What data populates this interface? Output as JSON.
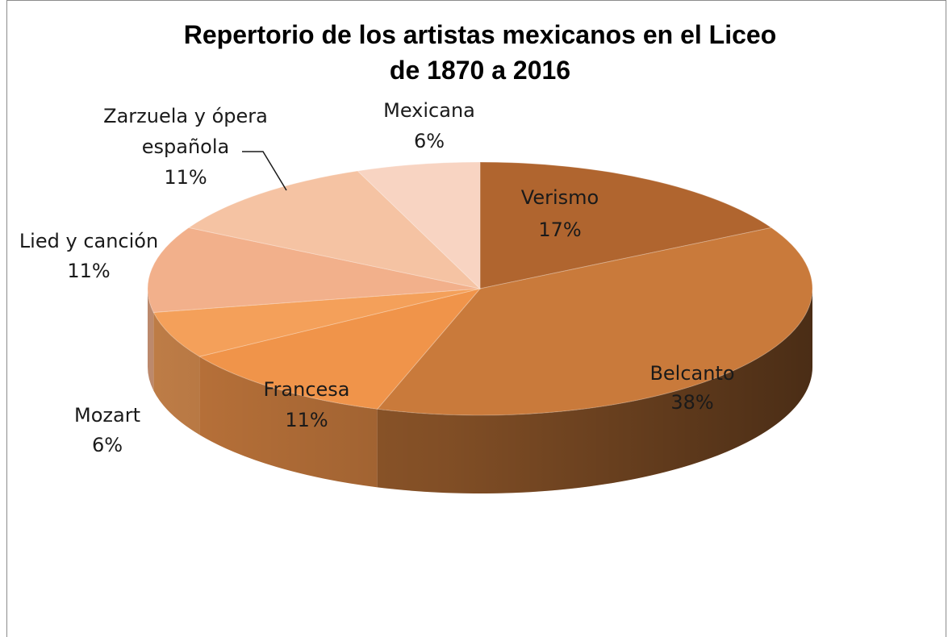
{
  "chart_data": {
    "type": "pie",
    "title": "Repertorio de los artistas mexicanos en el Liceo",
    "subtitle": "de 1870 a 2016",
    "slices": [
      {
        "name": "Verismo",
        "value": 17,
        "label": "17%",
        "color": "#b0652f"
      },
      {
        "name": "Belcanto",
        "value": 38,
        "label": "38%",
        "color": "#c97a3b"
      },
      {
        "name": "Francesa",
        "value": 11,
        "label": "11%",
        "color": "#f0944a"
      },
      {
        "name": "Mozart",
        "value": 6,
        "label": "6%",
        "color": "#f4a05a"
      },
      {
        "name": "Lied y canción",
        "value": 11,
        "label": "11%",
        "color": "#f2b08b"
      },
      {
        "name": "Zarzuela y ópera española",
        "value": 11,
        "label": "11%",
        "color": "#f5c3a3"
      },
      {
        "name": "Mexicana",
        "value": 6,
        "label": "6%",
        "color": "#f8d4c2"
      }
    ],
    "style": "3d-pie",
    "legend": "none"
  }
}
